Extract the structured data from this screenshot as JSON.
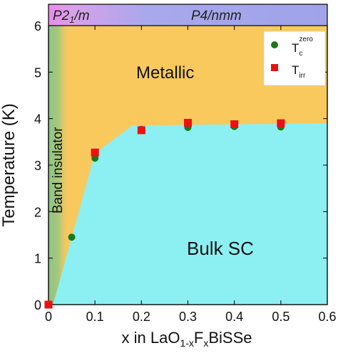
{
  "chart_data": {
    "type": "scatter",
    "title": "",
    "xlabel": {
      "pre": "x in LaO",
      "sub1": "1-x",
      "mid": "F",
      "sub2": "x",
      "post": "BiSSe"
    },
    "ylabel": "Temperature (K)",
    "xlim": [
      0,
      0.6
    ],
    "ylim": [
      0,
      6
    ],
    "x_ticks": [
      0,
      0.1,
      0.2,
      0.3,
      0.4,
      0.5,
      0.6
    ],
    "x_tick_labels": [
      "0",
      "0.1",
      "0.2",
      "0.3",
      "0.4",
      "0.5",
      "0.6"
    ],
    "y_ticks": [
      0,
      1,
      2,
      3,
      4,
      5,
      6
    ],
    "y_tick_labels": [
      "0",
      "1",
      "2",
      "3",
      "4",
      "5",
      "6"
    ],
    "grid": false,
    "phase_bar": [
      {
        "label_main": "P2",
        "label_sub": "1",
        "label_rest": "/m",
        "x_range": [
          0,
          0.05
        ],
        "color": "#e98ce9"
      },
      {
        "label_main": "P4/nmm",
        "label_sub": "",
        "label_rest": "",
        "x_range": [
          0.05,
          0.6
        ],
        "color": "#9fa3e8"
      }
    ],
    "regions": [
      {
        "name": "Band insulator",
        "color": "#8fc585"
      },
      {
        "name": "Metallic",
        "color": "#f9c95e"
      },
      {
        "name": "Bulk SC",
        "color": "#8cf0f2"
      }
    ],
    "sc_boundary": {
      "x": [
        0.01,
        0.1,
        0.18,
        0.6
      ],
      "y": [
        0,
        3.25,
        3.85,
        3.9
      ]
    },
    "series": [
      {
        "name": "T_c^zero",
        "label_main": "T",
        "label_sub": "c",
        "label_sup": "zero",
        "marker": "circle",
        "color": "#1a7a1a",
        "x": [
          0,
          0.05,
          0.1,
          0.2,
          0.3,
          0.4,
          0.5
        ],
        "y": [
          0,
          1.45,
          3.15,
          3.77,
          3.81,
          3.83,
          3.82
        ]
      },
      {
        "name": "T_irr",
        "label_main": "T",
        "label_sub": "irr",
        "label_sup": "",
        "marker": "square",
        "color": "#ee1010",
        "x": [
          0,
          0.1,
          0.2,
          0.3,
          0.4,
          0.5
        ],
        "y": [
          0,
          3.27,
          3.75,
          3.91,
          3.88,
          3.9
        ]
      }
    ],
    "legend_position": "top-right"
  }
}
